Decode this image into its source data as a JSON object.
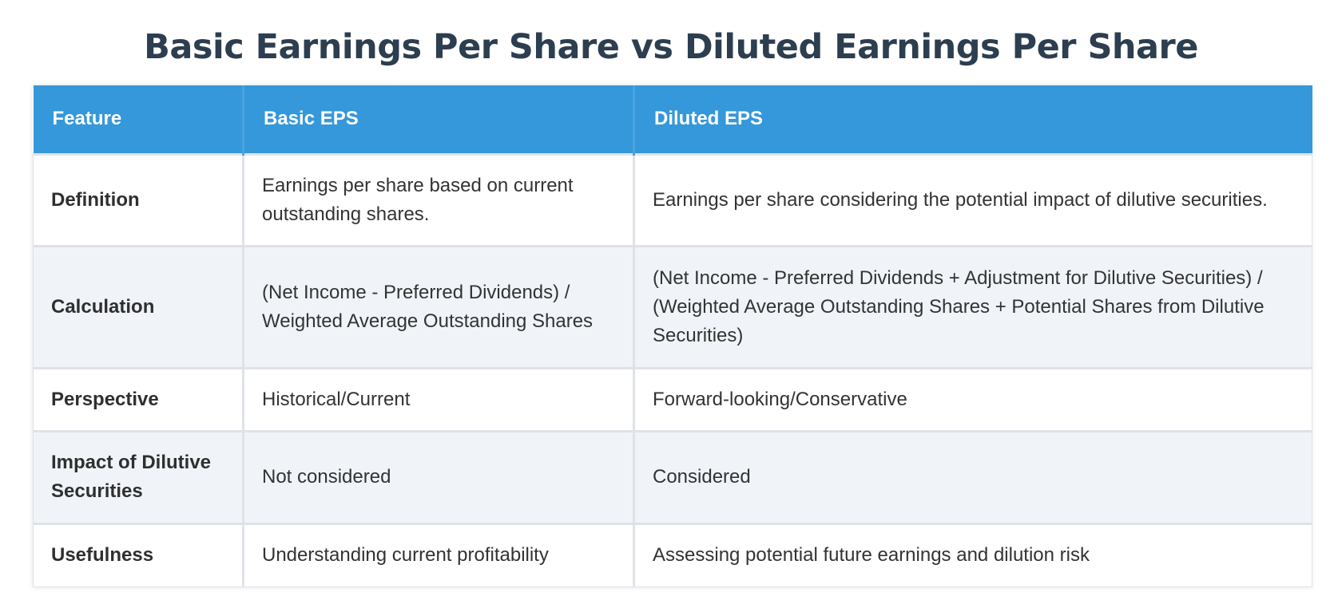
{
  "title": "Basic Earnings Per Share vs Diluted Earnings Per Share",
  "colors": {
    "title": "#2c3e50",
    "header_bg": "#3498db",
    "header_text": "#ffffff",
    "alt_row_bg": "#f0f4f9",
    "row_bg": "#ffffff",
    "border": "#dfe3e8"
  },
  "table": {
    "headers": [
      "Feature",
      "Basic EPS",
      "Diluted EPS"
    ],
    "rows": [
      {
        "feature": "Definition",
        "basic": "Earnings per share based on current outstanding shares.",
        "diluted": "Earnings per share considering the potential impact of dilutive securities."
      },
      {
        "feature": "Calculation",
        "basic": "(Net Income - Preferred Dividends) / Weighted Average Outstanding Shares",
        "diluted": "(Net Income - Preferred Dividends + Adjustment for Dilutive Securities) / (Weighted Average Outstanding Shares + Potential Shares from Dilutive Securities)"
      },
      {
        "feature": "Perspective",
        "basic": "Historical/Current",
        "diluted": "Forward-looking/Conservative"
      },
      {
        "feature": "Impact of Dilutive Securities",
        "basic": "Not considered",
        "diluted": "Considered"
      },
      {
        "feature": "Usefulness",
        "basic": "Understanding current profitability",
        "diluted": "Assessing potential future earnings and dilution risk"
      }
    ]
  }
}
